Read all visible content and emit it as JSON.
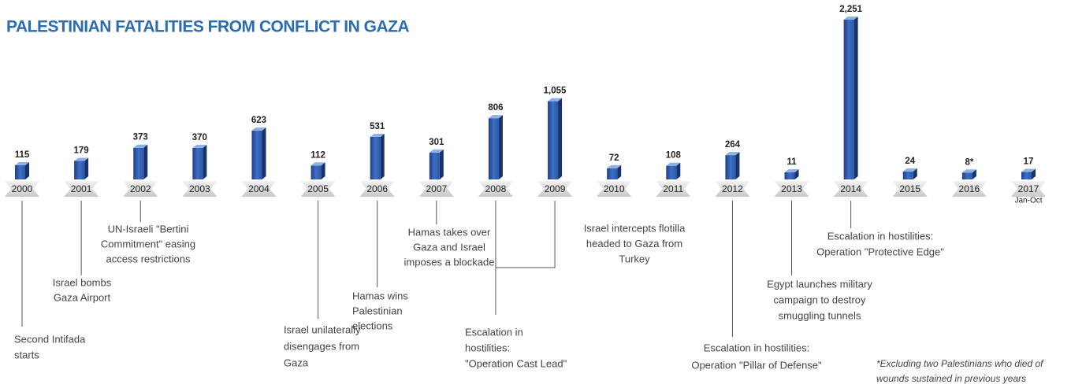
{
  "chart_data": {
    "type": "bar",
    "title": "PALESTINIAN FATALITIES FROM CONFLICT IN GAZA",
    "categories": [
      "2000",
      "2001",
      "2002",
      "2003",
      "2004",
      "2005",
      "2006",
      "2007",
      "2008",
      "2009",
      "2010",
      "2011",
      "2012",
      "2013",
      "2014",
      "2015",
      "2016",
      "2017"
    ],
    "category_note": "Jan-Oct",
    "values": [
      115,
      179,
      373,
      370,
      623,
      112,
      531,
      301,
      806,
      1055,
      72,
      108,
      264,
      11,
      2251,
      24,
      8,
      17
    ],
    "value_labels": [
      "115",
      "179",
      "373",
      "370",
      "623",
      "112",
      "531",
      "301",
      "806",
      "1,055",
      "72",
      "108",
      "264",
      "11",
      "2,251",
      "24",
      "8*",
      "17"
    ],
    "color": "#2a5caa",
    "annotations": [
      {
        "lines": [
          "Second Intifada",
          "starts"
        ]
      },
      {
        "lines": [
          "Israel bombs",
          "Gaza Airport"
        ]
      },
      {
        "lines": [
          "UN-Israeli \"Bertini",
          "Commitment\" easing",
          "access restrictions"
        ]
      },
      {
        "lines": [
          "Israel unilaterally",
          "disengages from",
          "Gaza"
        ]
      },
      {
        "lines": [
          "Hamas wins",
          "Palestinian",
          "elections"
        ]
      },
      {
        "lines": [
          "Hamas takes over",
          "Gaza and Israel",
          "imposes a blockade"
        ]
      },
      {
        "lines": [
          "Escalation in",
          "hostilities:",
          "\"Operation Cast Lead\""
        ]
      },
      {
        "lines": [
          "Israel intercepts flotilla",
          "headed to Gaza from",
          "Turkey"
        ]
      },
      {
        "lines": [
          "Escalation in hostilities:",
          "Operation \"Pillar of Defense\""
        ]
      },
      {
        "lines": [
          "Egypt launches military",
          "campaign to destroy",
          "smuggling tunnels"
        ]
      },
      {
        "lines": [
          "Escalation in hostilities:",
          "Operation \"Protective Edge\""
        ]
      }
    ],
    "footnote": [
      "*Excluding two Palestinians who died of",
      "wounds sustained in previous years"
    ]
  }
}
